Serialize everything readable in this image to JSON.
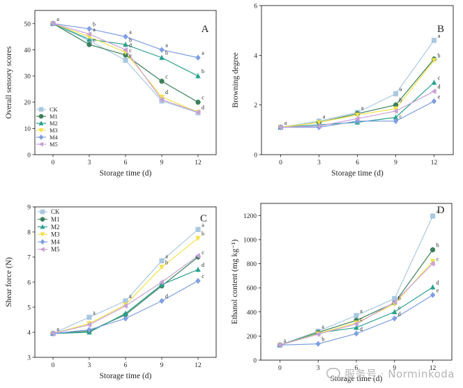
{
  "chart_data": [
    {
      "type": "line",
      "panel_label": "A",
      "xlabel": "Storage time (d)",
      "ylabel": "Overall sensory scores",
      "x": [
        0,
        3,
        6,
        9,
        12
      ],
      "xticks": [
        "0",
        "3",
        "6",
        "9",
        "12"
      ],
      "ylim": [
        0,
        55
      ],
      "yticks": [
        "0",
        "10",
        "20",
        "30",
        "40",
        "50"
      ],
      "legend_position": "bottom-left",
      "series": [
        {
          "name": "CK",
          "color": "#a9c8e0",
          "marker": "square",
          "values": [
            50,
            43.5,
            36,
            20.5,
            16
          ],
          "letters": [
            "",
            "",
            "e",
            "",
            ""
          ]
        },
        {
          "name": "M1",
          "color": "#3b7f5a",
          "marker": "circle",
          "values": [
            50,
            42,
            38,
            28,
            20
          ],
          "letters": [
            "",
            "c",
            "c",
            "c",
            "c"
          ]
        },
        {
          "name": "M2",
          "color": "#2aa08e",
          "marker": "triangle-up",
          "values": [
            50,
            44,
            42,
            37,
            30
          ],
          "letters": [
            "",
            "",
            "b",
            "b",
            "b"
          ]
        },
        {
          "name": "M3",
          "color": "#f2e24a",
          "marker": "triangle-down",
          "values": [
            50,
            45,
            39,
            22,
            16.2
          ],
          "letters": [
            "",
            "",
            "",
            "d",
            "d"
          ]
        },
        {
          "name": "M4",
          "color": "#7e9fe3",
          "marker": "diamond",
          "values": [
            50,
            48,
            45,
            40,
            37
          ],
          "letters": [
            "a",
            "b",
            "a",
            "a",
            "a"
          ]
        },
        {
          "name": "M5",
          "color": "#c9a0d6",
          "marker": "triangle-left",
          "values": [
            50,
            46,
            40,
            21,
            16.2
          ],
          "letters": [
            "",
            "a",
            "d",
            "",
            ""
          ]
        }
      ]
    },
    {
      "type": "line",
      "panel_label": "B",
      "xlabel": "Storage time (d)",
      "ylabel": "Browning degree",
      "x": [
        0,
        3,
        6,
        9,
        12
      ],
      "xticks": [
        "0",
        "3",
        "6",
        "9",
        "12"
      ],
      "ylim": [
        0,
        6
      ],
      "yticks": [
        "0",
        "2",
        "4",
        "6"
      ],
      "series": [
        {
          "name": "CK",
          "color": "#a9c8e0",
          "marker": "square",
          "values": [
            1.1,
            1.35,
            1.7,
            2.45,
            4.6
          ],
          "letters": [
            "a",
            "a",
            "a",
            "a",
            "a"
          ]
        },
        {
          "name": "M1",
          "color": "#3b7f5a",
          "marker": "circle",
          "values": [
            1.1,
            1.3,
            1.65,
            2.0,
            3.85
          ],
          "letters": [
            "",
            "",
            "",
            "b",
            ""
          ]
        },
        {
          "name": "M2",
          "color": "#2aa08e",
          "marker": "triangle-up",
          "values": [
            1.1,
            1.2,
            1.3,
            1.5,
            2.9
          ],
          "letters": [
            "",
            "",
            "",
            "",
            "c"
          ]
        },
        {
          "name": "M3",
          "color": "#f2e24a",
          "marker": "triangle-down",
          "values": [
            1.1,
            1.3,
            1.6,
            1.85,
            3.8
          ],
          "letters": [
            "",
            "",
            "",
            "",
            "b"
          ]
        },
        {
          "name": "M4",
          "color": "#7e9fe3",
          "marker": "diamond",
          "values": [
            1.1,
            1.1,
            1.35,
            1.35,
            2.15
          ],
          "letters": [
            "",
            "",
            "",
            "c",
            "e"
          ]
        },
        {
          "name": "M5",
          "color": "#c9a0d6",
          "marker": "triangle-left",
          "values": [
            1.1,
            1.15,
            1.45,
            1.75,
            2.55
          ],
          "letters": [
            "",
            "",
            "",
            "",
            "d"
          ]
        }
      ]
    },
    {
      "type": "line",
      "panel_label": "C",
      "xlabel": "Storage time (d)",
      "ylabel": "Shear force (N)",
      "x": [
        0,
        3,
        6,
        9,
        12
      ],
      "xticks": [
        "0",
        "3",
        "6",
        "9",
        "12"
      ],
      "ylim": [
        3,
        9
      ],
      "yticks": [
        "3",
        "4",
        "5",
        "6",
        "7",
        "8",
        "9"
      ],
      "legend_position": "top-left",
      "series": [
        {
          "name": "CK",
          "color": "#a9c8e0",
          "marker": "square",
          "values": [
            3.95,
            4.6,
            5.25,
            6.85,
            8.1
          ],
          "letters": [
            "a",
            "a",
            "a",
            "a",
            "a"
          ]
        },
        {
          "name": "M1",
          "color": "#3b7f5a",
          "marker": "circle",
          "values": [
            3.95,
            4.05,
            4.7,
            5.85,
            7.0
          ],
          "letters": [
            "",
            "",
            "",
            "",
            "c"
          ]
        },
        {
          "name": "M2",
          "color": "#2aa08e",
          "marker": "triangle-up",
          "values": [
            3.95,
            4.0,
            4.75,
            5.9,
            6.5
          ],
          "letters": [
            "",
            "",
            "",
            "",
            "d"
          ]
        },
        {
          "name": "M3",
          "color": "#f2e24a",
          "marker": "triangle-down",
          "values": [
            3.95,
            4.35,
            5.1,
            6.6,
            7.75
          ],
          "letters": [
            "",
            "",
            "",
            "b",
            "b"
          ]
        },
        {
          "name": "M4",
          "color": "#7e9fe3",
          "marker": "diamond",
          "values": [
            3.95,
            4.1,
            4.55,
            5.25,
            6.05
          ],
          "letters": [
            "",
            "",
            "",
            "d",
            "c"
          ]
        },
        {
          "name": "M5",
          "color": "#c9a0d6",
          "marker": "triangle-left",
          "values": [
            3.95,
            4.3,
            5.05,
            6.0,
            7.05
          ],
          "letters": [
            "",
            "",
            "",
            "",
            ""
          ]
        }
      ]
    },
    {
      "type": "line",
      "panel_label": "D",
      "xlabel": "Storage time (d)",
      "ylabel": "Ethanol content (mg kg⁻¹)",
      "x": [
        0,
        3,
        6,
        9,
        12
      ],
      "xticks": [
        "0",
        "3",
        "6",
        "9",
        "12"
      ],
      "ylim": [
        0,
        1300
      ],
      "yticks": [
        "0",
        "200",
        "400",
        "600",
        "800",
        "1000",
        "1200"
      ],
      "series": [
        {
          "name": "CK",
          "color": "#a9c8e0",
          "marker": "square",
          "values": [
            125,
            240,
            370,
            510,
            1195
          ],
          "letters": [
            "a",
            "a",
            "a",
            "",
            "a"
          ]
        },
        {
          "name": "M1",
          "color": "#3b7f5a",
          "marker": "circle",
          "values": [
            125,
            230,
            330,
            475,
            915
          ],
          "letters": [
            "",
            "",
            "",
            "b",
            "b"
          ]
        },
        {
          "name": "M2",
          "color": "#2aa08e",
          "marker": "triangle-up",
          "values": [
            125,
            225,
            270,
            400,
            605
          ],
          "letters": [
            "",
            "",
            "",
            "c",
            "d"
          ]
        },
        {
          "name": "M3",
          "color": "#f2e24a",
          "marker": "triangle-down",
          "values": [
            125,
            220,
            310,
            465,
            820
          ],
          "letters": [
            "",
            "",
            "",
            "",
            ""
          ]
        },
        {
          "name": "M4",
          "color": "#7e9fe3",
          "marker": "diamond",
          "values": [
            125,
            135,
            220,
            345,
            540
          ],
          "letters": [
            "",
            "b",
            "d",
            "d",
            "e"
          ]
        },
        {
          "name": "M5",
          "color": "#c9a0d6",
          "marker": "triangle-left",
          "values": [
            125,
            215,
            300,
            480,
            800
          ],
          "letters": [
            "",
            "",
            "c",
            "",
            "c"
          ]
        }
      ]
    }
  ],
  "watermark": "服务号 · Norminkoda"
}
